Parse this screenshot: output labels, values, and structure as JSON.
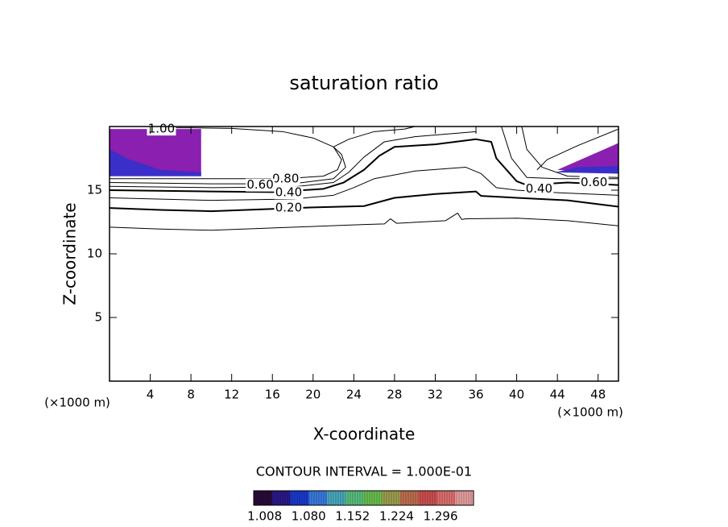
{
  "chart_data": {
    "type": "contour",
    "title": "saturation ratio",
    "xlabel": "X-coordinate",
    "ylabel": "Z-coordinate",
    "xunit": "(×1000 m)",
    "yunit": "(×1000 m)",
    "xlim": [
      0,
      50
    ],
    "ylim": [
      0,
      20
    ],
    "xticks": [
      4,
      8,
      12,
      16,
      20,
      24,
      28,
      32,
      36,
      40,
      44,
      48
    ],
    "yticks": [
      5,
      10,
      15
    ],
    "filled": [
      {
        "color": "#8a1fb0",
        "x": [
          0,
          9,
          9,
          0
        ],
        "z": [
          16.1,
          16.1,
          19.8,
          19.8
        ]
      },
      {
        "color": "#3a2fc8",
        "x": [
          0,
          9,
          9,
          5,
          2,
          0
        ],
        "z": [
          16.1,
          16.1,
          16.4,
          16.6,
          17.4,
          18.2
        ]
      },
      {
        "color": "#8a1fb0",
        "x": [
          44,
          50,
          50
        ],
        "z": [
          16.6,
          18.7,
          16.3
        ]
      },
      {
        "color": "#3a2fc8",
        "x": [
          43.8,
          50,
          50,
          46
        ],
        "z": [
          16.4,
          16.3,
          16.9,
          16.8
        ]
      }
    ],
    "contours": [
      {
        "bold": false,
        "x": [
          0,
          5,
          10,
          15,
          20,
          25,
          27,
          27.6,
          28.2,
          33,
          34.2,
          34.6,
          35,
          40,
          45,
          50
        ],
        "z": [
          12.1,
          11.95,
          11.85,
          12.0,
          12.15,
          12.3,
          12.35,
          12.75,
          12.4,
          12.6,
          13.2,
          12.7,
          12.75,
          12.8,
          12.6,
          12.2
        ]
      },
      {
        "bold": true,
        "x": [
          0,
          5,
          10,
          15,
          20,
          25,
          28,
          32,
          36,
          36.5,
          40,
          45,
          50
        ],
        "z": [
          13.6,
          13.45,
          13.35,
          13.5,
          13.65,
          13.75,
          14.4,
          14.7,
          14.9,
          14.55,
          14.4,
          14.2,
          13.7
        ]
      },
      {
        "bold": false,
        "x": [
          0,
          10,
          18,
          22,
          24,
          26,
          30,
          35,
          36.5,
          38,
          40,
          44,
          50
        ],
        "z": [
          14.4,
          14.2,
          14.3,
          14.6,
          15.2,
          15.9,
          16.5,
          16.8,
          16.3,
          15.2,
          15.0,
          14.8,
          14.6
        ]
      },
      {
        "bold": true,
        "x": [
          0,
          10,
          16,
          21,
          23,
          25,
          26.5,
          28,
          32,
          36,
          37.5,
          38,
          39,
          40,
          41,
          45,
          50
        ],
        "z": [
          15.0,
          14.9,
          14.85,
          15.1,
          15.6,
          16.6,
          17.7,
          18.4,
          18.6,
          19.0,
          18.8,
          17.5,
          16.6,
          15.7,
          15.4,
          15.6,
          15.4
        ]
      },
      {
        "bold": false,
        "x": [
          0,
          10,
          18,
          22,
          23.5,
          25,
          27,
          30,
          33,
          36,
          null,
          38.5,
          39.5,
          41,
          44,
          50
        ],
        "z": [
          15.3,
          15.2,
          15.25,
          15.6,
          16.4,
          17.6,
          18.8,
          19.2,
          19.4,
          19.6,
          null,
          20,
          17.5,
          16.0,
          15.9,
          15.9
        ]
      },
      {
        "bold": false,
        "x": [
          0,
          10,
          18,
          22,
          23.2,
          22.8,
          22,
          23.5,
          26,
          29,
          30,
          null,
          40.5,
          41,
          42.5,
          45,
          50
        ],
        "z": [
          15.6,
          15.5,
          15.5,
          15.9,
          16.8,
          17.8,
          18.4,
          19.0,
          19.6,
          19.8,
          20,
          null,
          20,
          18.2,
          16.8,
          16.1,
          16.0
        ]
      },
      {
        "bold": false,
        "x": [
          0,
          10,
          17,
          21,
          22.4,
          22.8,
          22,
          20,
          17,
          12,
          8,
          5,
          null,
          42,
          43,
          46,
          50
        ],
        "z": [
          15.9,
          15.9,
          15.9,
          16.1,
          16.6,
          17.4,
          18.4,
          19.1,
          19.6,
          19.85,
          19.9,
          19.9,
          null,
          16.6,
          17.4,
          18.5,
          19.8
        ]
      }
    ],
    "contour_labels": [
      {
        "value": 1,
        "label": "1.00",
        "x": 5.1,
        "z": 19.8
      },
      {
        "value": 0.8,
        "label": "0.80",
        "x": 17.3,
        "z": 15.9
      },
      {
        "value": 0.6,
        "label": "0.60",
        "x": 14.8,
        "z": 15.4
      },
      {
        "value": 0.4,
        "label": "0.40",
        "x": 17.6,
        "z": 14.8
      },
      {
        "value": 0.2,
        "label": "0.20",
        "x": 17.6,
        "z": 13.6
      },
      {
        "value": 0.4,
        "label": "0.40",
        "x": 42.2,
        "z": 15.1
      },
      {
        "value": 0.6,
        "label": "0.60",
        "x": 47.6,
        "z": 15.6
      }
    ],
    "interval_note": "CONTOUR INTERVAL = 1.000E-01",
    "colorbar": {
      "lim": [
        0.99,
        1.35
      ],
      "ticks": [
        {
          "value": 1.008,
          "label": "1.008"
        },
        {
          "value": 1.08,
          "label": "1.080"
        },
        {
          "value": 1.152,
          "label": "1.152"
        },
        {
          "value": 1.224,
          "label": "1.224"
        },
        {
          "value": 1.296,
          "label": "1.296"
        }
      ],
      "colors": [
        "#2a0a3a",
        "#2a1a8a",
        "#1a3ad0",
        "#3a7ae0",
        "#4aaac0",
        "#5ac080",
        "#6ac050",
        "#a0a050",
        "#c07050",
        "#d05050",
        "#e07070",
        "#e8a0a0"
      ]
    }
  }
}
